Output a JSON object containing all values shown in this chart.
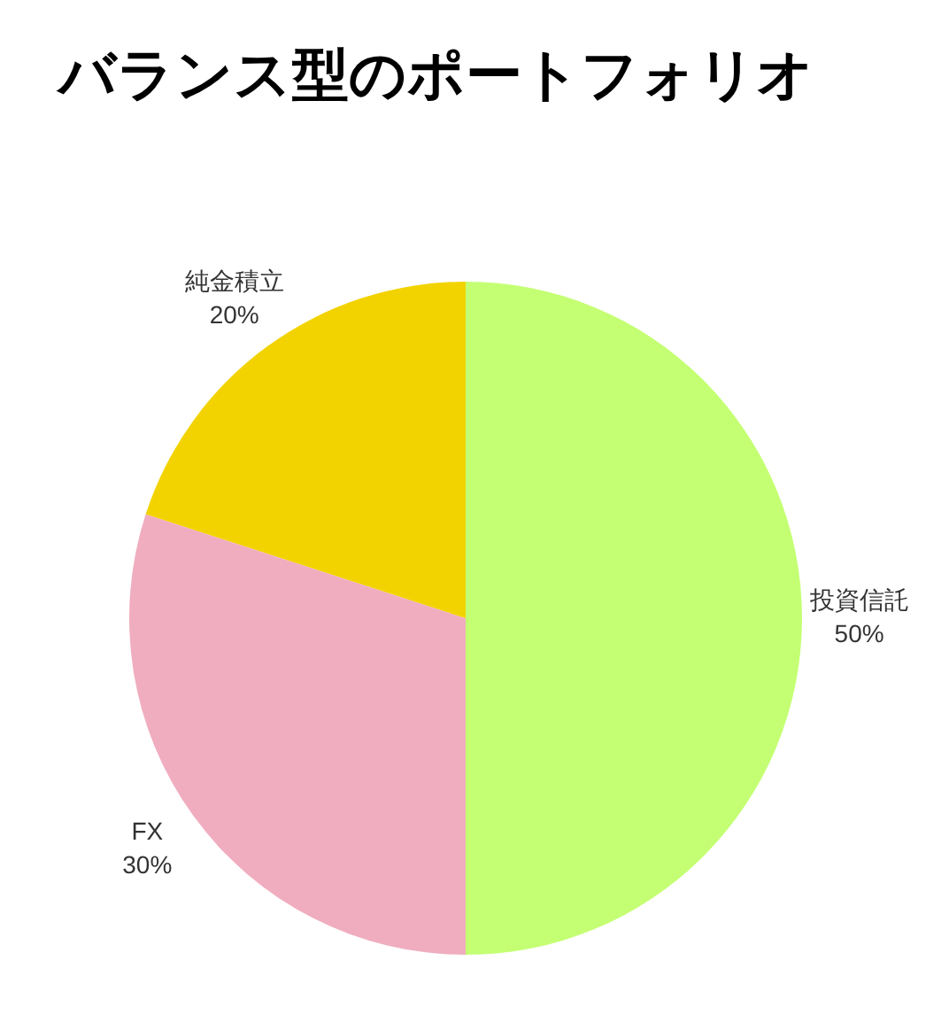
{
  "chart_data": {
    "type": "pie",
    "title": "バランス型のポートフォリオ",
    "categories": [
      "投資信託",
      "FX",
      "純金積立"
    ],
    "values": [
      50,
      30,
      20
    ],
    "colors": [
      "#c4ff73",
      "#f0adc0",
      "#f2d300"
    ],
    "value_labels": [
      "50%",
      "30%",
      "20%"
    ]
  }
}
